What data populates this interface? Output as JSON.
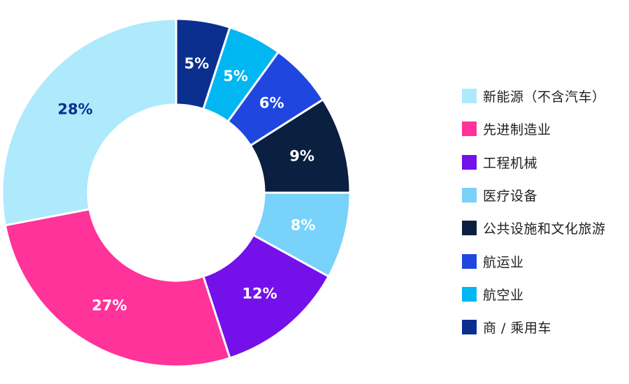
{
  "chart_data": {
    "type": "pie",
    "donut": true,
    "title": "",
    "legend_position": "right",
    "slices": [
      {
        "label": "商 / 乘用车",
        "value": 5,
        "display": "5%",
        "color": "#0a2f8f",
        "label_color": "#ffffff"
      },
      {
        "label": "航空业",
        "value": 5,
        "display": "5%",
        "color": "#00b7f1",
        "label_color": "#ffffff"
      },
      {
        "label": "航运业",
        "value": 6,
        "display": "6%",
        "color": "#1f47e0",
        "label_color": "#ffffff"
      },
      {
        "label": "公共设施和文化旅游",
        "value": 9,
        "display": "9%",
        "color": "#0b1f40",
        "label_color": "#ffffff"
      },
      {
        "label": "医疗设备",
        "value": 8,
        "display": "8%",
        "color": "#78d2fa",
        "label_color": "#ffffff"
      },
      {
        "label": "工程机械",
        "value": 12,
        "display": "12%",
        "color": "#7410ea",
        "label_color": "#ffffff"
      },
      {
        "label": "先进制造业",
        "value": 27,
        "display": "27%",
        "color": "#ff3399",
        "label_color": "#ffffff"
      },
      {
        "label": "新能源（不含汽车）",
        "value": 28,
        "display": "28%",
        "color": "#aee9fc",
        "label_color": "#0a2f8f"
      }
    ],
    "legend_order": [
      "新能源（不含汽车）",
      "先进制造业",
      "工程机械",
      "医疗设备",
      "公共设施和文化旅游",
      "航运业",
      "航空业",
      "商 / 乘用车"
    ]
  }
}
